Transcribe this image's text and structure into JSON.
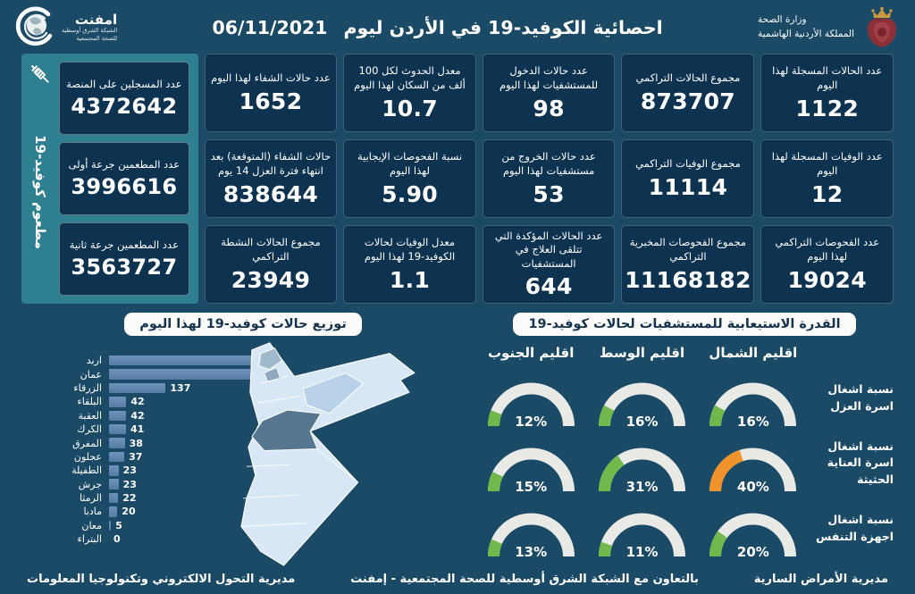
{
  "colors": {
    "page_bg": "#1b4a67",
    "card_bg": "#0e3351",
    "sidebar_teal": "#2e7f90",
    "bar_fill": "#6189b2",
    "gauge_green": "#72b84d",
    "gauge_orange": "#f0932b",
    "gauge_track": "#e9e9e5",
    "title_box_bg": "#fbfbf9",
    "title_box_text": "#14334f",
    "map_base": "#d7e7f6",
    "map_amman": "#57768f",
    "map_zarqa": "#b9d2ea",
    "map_irbid": "#9fb9cd",
    "map_north_small": "#8fa9bf"
  },
  "header": {
    "title": "احصائية الكوفيد-19 في الأردن ليوم",
    "date": "06/11/2021",
    "ministry": {
      "icon": "jordan-coat-of-arms",
      "line1": "وزارة الصحة",
      "line2": "المملكة الأردنية الهاشمية"
    },
    "emphnet": {
      "icon": "globe-swoosh",
      "name": "امفنت",
      "sub_line1": "الشبكة الشرق أوسطية",
      "sub_line2": "للصحة المجتمعية"
    }
  },
  "vaccination": {
    "side_label": "مطعوم كوفيد-19",
    "icon": "syringe-icon",
    "cards": [
      {
        "label": "عدد المسجلين على المنصة",
        "value": "4372642"
      },
      {
        "label": "عدد المطعمين جرعة أولى",
        "value": "3996616"
      },
      {
        "label": "عدد المطعمين جرعة ثانية",
        "value": "3563727"
      }
    ]
  },
  "stats": {
    "columns": [
      {
        "cards": [
          {
            "label": "عدد الحالات المسجلة لهذا اليوم",
            "value": "1122"
          },
          {
            "label": "عدد الوفيات المسجلة لهذا اليوم",
            "value": "12"
          },
          {
            "label": "عدد الفحوصات التراكمي لهذا اليوم",
            "value": "19024"
          }
        ]
      },
      {
        "cards": [
          {
            "label": "مجموع الحالات التراكمي",
            "value": "873707"
          },
          {
            "label": "مجموع الوفيات التراكمي",
            "value": "11114"
          },
          {
            "label": "مجموع الفحوصات المخبرية التراكمي",
            "value": "11168182"
          }
        ]
      },
      {
        "cards": [
          {
            "label": "عدد حالات الدخول للمستشفيات لهذا اليوم",
            "value": "98"
          },
          {
            "label": "عدد حالات الخروج من مستشفيات لهذا اليوم",
            "value": "53"
          },
          {
            "label": "عدد الحالات المؤكدة التي تتلقى العلاج في المستشفيات",
            "value": "644"
          }
        ]
      },
      {
        "cards": [
          {
            "label": "معدل الحدوث لكل 100 ألف من السكان لهذا اليوم",
            "value": "10.7"
          },
          {
            "label": "نسبة الفحوصات الإيجابية لهذا اليوم",
            "value": "5.90"
          },
          {
            "label": "معدل الوفيات لحالات الكوفيد-19 لهذا اليوم",
            "value": "1.1"
          }
        ]
      },
      {
        "cards": [
          {
            "label": "عدد حالات الشفاء لهذا اليوم",
            "value": "1652"
          },
          {
            "label": "حالات الشفاء (المتوقعة) بعد انتهاء فترة العزل 14 يوم",
            "value": "838644"
          },
          {
            "label": "مجموع الحالات النشطة التراكمي",
            "value": "23949"
          }
        ]
      }
    ]
  },
  "chart_data": [
    {
      "type": "bar",
      "title": "توزيع حالات كوفيد-19 لهذا اليوم",
      "orientation": "horizontal",
      "categories": [
        "اربد",
        "عمان",
        "الزرقاء",
        "البلقاء",
        "العقبة",
        "الكرك",
        "المفرق",
        "عجلون",
        "الطفيلة",
        "جرش",
        "الرمثا",
        "مادبا",
        "معان",
        "البتراء"
      ],
      "values": [
        350,
        342,
        137,
        42,
        42,
        41,
        38,
        37,
        23,
        23,
        22,
        20,
        5,
        0
      ],
      "xlim": [
        0,
        350
      ],
      "value_labels": true,
      "legend": "none",
      "grid": false
    },
    {
      "type": "gauge",
      "title": "القدرة الاستيعابية للمستشفيات لحالات كوفيد-19",
      "unit": "%",
      "columns_right_to_left": [
        "اقليم الشمال",
        "اقليم الوسط",
        "اقليم الجنوب"
      ],
      "rows": [
        {
          "label": "نسبة اشغال اسرة العزل",
          "values": [
            16,
            16,
            12
          ]
        },
        {
          "label": "نسبة اشغال اسرة العناية الحثيثة",
          "values": [
            40,
            31,
            15
          ]
        },
        {
          "label": "نسبة اشغال اجهزة التنفس",
          "values": [
            20,
            11,
            13
          ]
        }
      ],
      "orange_threshold": 40,
      "range": [
        0,
        100
      ]
    }
  ],
  "footer": {
    "right": "مديرية الأمراض السارية",
    "center": "بالتعاون مع الشبكة الشرق أوسطية للصحة المجتمعية - إمفنت",
    "left": "مديرية التحول الالكتروني وتكنولوجيا المعلومات"
  }
}
